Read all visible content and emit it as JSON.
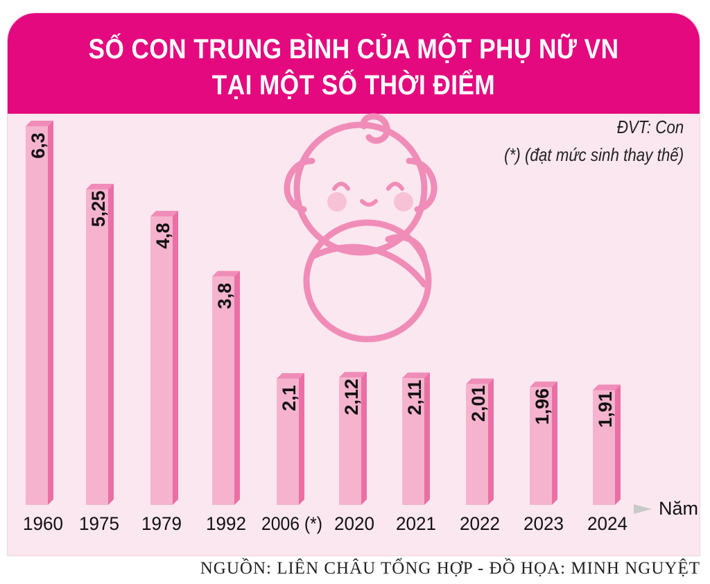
{
  "title": {
    "line1": "SỐ CON TRUNG BÌNH CỦA MỘT PHỤ NỮ VN",
    "line2": "TẠI MỘT SỐ THỜI ĐIỂM"
  },
  "notes": {
    "unit": "ĐVT: Con",
    "footnote": "(*) (đạt mức sinh thay thế)"
  },
  "source": "NGUỒN: LIÊN CHÂU TỔNG HỢP - ĐỒ HỌA: MINH NGUYỆT",
  "colors": {
    "header": "#e4097e",
    "panel": "#fbe7ef",
    "bar_front": "#f6b3ce",
    "bar_side": "#ea6fa4",
    "bar_top": "#f08cb8",
    "illustration": "#f08cb8",
    "axis_arrow": "#c9c9c9"
  },
  "illustration": "baby-swaddle-icon",
  "chart_data": {
    "type": "bar",
    "xlabel": "Năm",
    "ylabel": "",
    "categories": [
      "1960",
      "1975",
      "1979",
      "1992",
      "2006 (*)",
      "2020",
      "2021",
      "2022",
      "2023",
      "2024"
    ],
    "values": [
      6.3,
      5.25,
      4.8,
      3.8,
      2.1,
      2.12,
      2.11,
      2.01,
      1.96,
      1.91
    ],
    "value_labels": [
      "6,3",
      "5,25",
      "4,8",
      "3,8",
      "2,1",
      "2,12",
      "2,11",
      "2,01",
      "1,96",
      "1,91"
    ],
    "ylim": [
      0,
      6.5
    ],
    "grid": false,
    "legend": "none"
  }
}
